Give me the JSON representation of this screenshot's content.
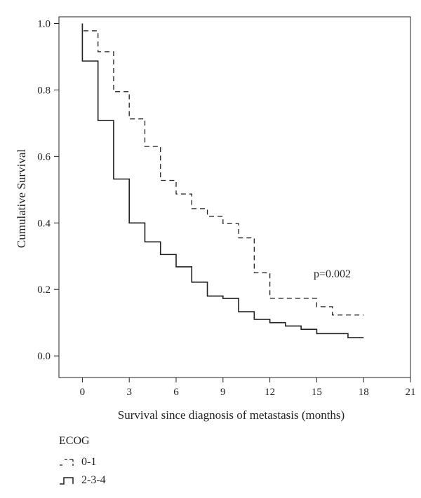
{
  "chart_data": {
    "type": "line",
    "subtype": "kaplan-meier-step",
    "xlabel": "Survival since diagnosis of metastasis (months)",
    "ylabel": "Cumulative Survival",
    "xlim": [
      -1.5,
      21
    ],
    "ylim": [
      -0.065,
      1.02
    ],
    "xticks": [
      0,
      3,
      6,
      9,
      12,
      15,
      18,
      21
    ],
    "yticks": [
      0.0,
      0.2,
      0.4,
      0.6,
      0.8,
      1.0
    ],
    "annotation": "p=0.002",
    "legend_title": "ECOG",
    "legend_placement": "bottom-left",
    "grid": false,
    "series": [
      {
        "name": "0-1",
        "line_style": "dashed",
        "color": "#231f20",
        "x": [
          0,
          0,
          1,
          2,
          3,
          4,
          5,
          6,
          7,
          8,
          9,
          10,
          11,
          12,
          15,
          16,
          18
        ],
        "y": [
          1.0,
          0.978,
          0.915,
          0.795,
          0.713,
          0.63,
          0.528,
          0.487,
          0.443,
          0.42,
          0.398,
          0.355,
          0.25,
          0.173,
          0.148,
          0.123,
          0.123
        ]
      },
      {
        "name": "2-3-4",
        "line_style": "solid",
        "color": "#231f20",
        "x": [
          0,
          0,
          1,
          2,
          3,
          4,
          5,
          6,
          7,
          8,
          9,
          10,
          11,
          12,
          13,
          14,
          15,
          17,
          18
        ],
        "y": [
          1.0,
          0.887,
          0.708,
          0.532,
          0.4,
          0.343,
          0.305,
          0.268,
          0.222,
          0.18,
          0.173,
          0.133,
          0.11,
          0.1,
          0.09,
          0.08,
          0.067,
          0.055,
          0.055
        ]
      }
    ]
  }
}
